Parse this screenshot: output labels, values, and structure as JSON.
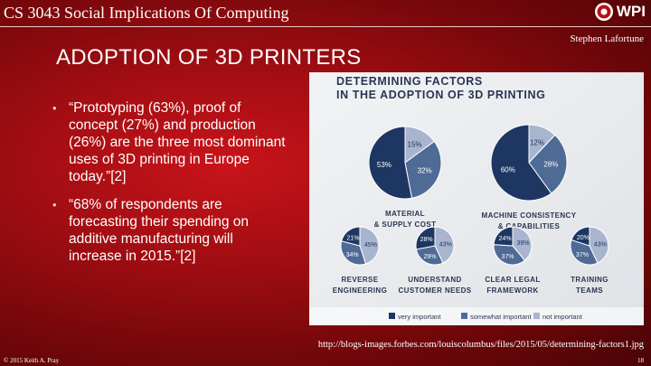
{
  "header": {
    "course": "CS 3043 Social Implications Of Computing",
    "logo": "WPI",
    "author": "Stephen Lafortune"
  },
  "title": "ADOPTION OF 3D PRINTERS",
  "bullets": [
    "“Prototyping (63%), proof of concept (27%) and production (26%) are the three most dominant uses of 3D printing in Europe today.”[2]",
    "“68% of respondents are forecasting their spending on additive manufacturing will increase in 2015.”[2]"
  ],
  "figure": {
    "title": [
      "DETERMINING FACTORS",
      "IN THE ADOPTION OF 3D PRINTING"
    ],
    "legend": [
      "very important",
      "somewhat important",
      "not important"
    ],
    "colors": [
      "#1d3762",
      "#4e6b96",
      "#a9b5cf"
    ],
    "pies": [
      {
        "label": [
          "MATERIAL",
          "& SUPPLY COST"
        ],
        "values": [
          53,
          32,
          15
        ],
        "value_labels": [
          "53%",
          "32%",
          "15%"
        ]
      },
      {
        "label": [
          "MACHINE CONSISTENCY",
          "& CAPABILITIES"
        ],
        "values": [
          60,
          28,
          12
        ],
        "value_labels": [
          "60%",
          "28%",
          "12%"
        ]
      },
      {
        "label": [
          "REVERSE",
          "ENGINEERING"
        ],
        "values": [
          21,
          34,
          45
        ],
        "value_labels": [
          "21%",
          "34%",
          "45%"
        ]
      },
      {
        "label": [
          "UNDERSTAND",
          "CUSTOMER NEEDS"
        ],
        "values": [
          28,
          29,
          43
        ],
        "value_labels": [
          "28%",
          "29%",
          "43%"
        ]
      },
      {
        "label": [
          "CLEAR LEGAL",
          "FRAMEWORK"
        ],
        "values": [
          24,
          37,
          39
        ],
        "value_labels": [
          "24%",
          "37%",
          "39%"
        ]
      },
      {
        "label": [
          "TRAINING",
          "TEAMS"
        ],
        "values": [
          20,
          37,
          43
        ],
        "value_labels": [
          "20%",
          "37%",
          "43%"
        ]
      }
    ]
  },
  "source": "http://blogs-images.forbes.com/louiscolumbus/files/2015/05/determining-factors1.jpg",
  "footer": {
    "copyright": "© 2015 Keith A. Pray",
    "page": "18"
  }
}
